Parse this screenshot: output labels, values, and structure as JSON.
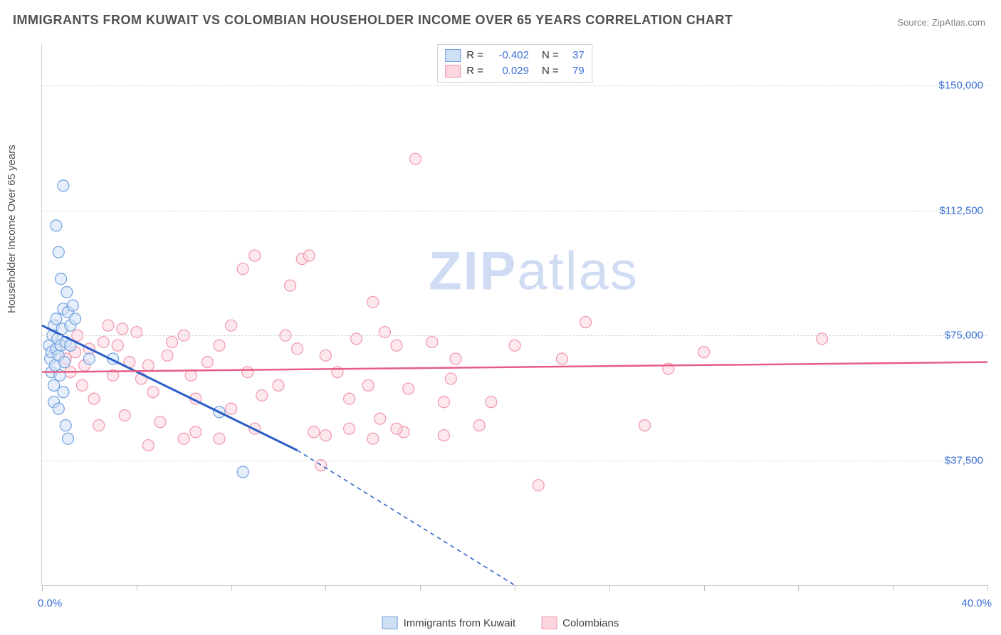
{
  "title": "IMMIGRANTS FROM KUWAIT VS COLOMBIAN HOUSEHOLDER INCOME OVER 65 YEARS CORRELATION CHART",
  "source": "Source: ZipAtlas.com",
  "ylabel": "Householder Income Over 65 years",
  "watermark_bold": "ZIP",
  "watermark_rest": "atlas",
  "chart": {
    "type": "scatter",
    "xlim": [
      0,
      40
    ],
    "ylim": [
      0,
      162500
    ],
    "xtick_positions": [
      0,
      4,
      8,
      12,
      16,
      20,
      24,
      28,
      32,
      36,
      40
    ],
    "xtick_labels": {
      "0": "0.0%",
      "40": "40.0%"
    },
    "ytick_positions": [
      37500,
      75000,
      112500,
      150000
    ],
    "ytick_labels": [
      "$37,500",
      "$75,000",
      "$112,500",
      "$150,000"
    ],
    "grid_color": "#d8d8d8",
    "axis_color": "#d0d0d0",
    "background": "#ffffff",
    "marker_radius": 8,
    "marker_stroke_width": 1.2,
    "series": [
      {
        "name": "Immigrants from Kuwait",
        "fill": "#cfe0f5",
        "stroke": "#6fa0e0",
        "fill_opacity": 0.55,
        "R": "-0.402",
        "N": "37",
        "trend": {
          "x1": 0,
          "y1": 78000,
          "x2": 10.8,
          "y2": 40500,
          "dash_x2": 20,
          "dash_y2": 0,
          "color": "#2a5fc7",
          "width": 3
        },
        "points": [
          [
            0.3,
            72000
          ],
          [
            0.35,
            68000
          ],
          [
            0.4,
            64000
          ],
          [
            0.4,
            70000
          ],
          [
            0.45,
            75000
          ],
          [
            0.5,
            60000
          ],
          [
            0.5,
            78000
          ],
          [
            0.55,
            66000
          ],
          [
            0.6,
            71000
          ],
          [
            0.6,
            80000
          ],
          [
            0.65,
            74000
          ],
          [
            0.7,
            69000
          ],
          [
            0.75,
            63000
          ],
          [
            0.8,
            72000
          ],
          [
            0.85,
            77000
          ],
          [
            0.9,
            83000
          ],
          [
            0.95,
            67000
          ],
          [
            1.0,
            73000
          ],
          [
            1.05,
            88000
          ],
          [
            1.1,
            82000
          ],
          [
            1.2,
            78000
          ],
          [
            1.3,
            84000
          ],
          [
            1.4,
            80000
          ],
          [
            0.6,
            108000
          ],
          [
            0.7,
            100000
          ],
          [
            0.8,
            92000
          ],
          [
            0.9,
            120000
          ],
          [
            1.0,
            48000
          ],
          [
            1.1,
            44000
          ],
          [
            1.2,
            72000
          ],
          [
            0.5,
            55000
          ],
          [
            0.7,
            53000
          ],
          [
            0.9,
            58000
          ],
          [
            2.0,
            68000
          ],
          [
            3.0,
            68000
          ],
          [
            7.5,
            52000
          ],
          [
            8.5,
            34000
          ]
        ]
      },
      {
        "name": "Colombians",
        "fill": "#fbd6df",
        "stroke": "#f196ad",
        "fill_opacity": 0.55,
        "R": "0.029",
        "N": "79",
        "trend": {
          "x1": 0,
          "y1": 64000,
          "x2": 40,
          "y2": 67000,
          "color": "#e75d86",
          "width": 2.5
        },
        "points": [
          [
            0.8,
            72000
          ],
          [
            1.0,
            68000
          ],
          [
            1.2,
            64000
          ],
          [
            1.4,
            70000
          ],
          [
            1.5,
            75000
          ],
          [
            1.7,
            60000
          ],
          [
            1.8,
            66000
          ],
          [
            2.0,
            71000
          ],
          [
            2.2,
            56000
          ],
          [
            2.4,
            48000
          ],
          [
            2.6,
            73000
          ],
          [
            2.8,
            78000
          ],
          [
            3.0,
            63000
          ],
          [
            3.2,
            72000
          ],
          [
            3.4,
            77000
          ],
          [
            3.5,
            51000
          ],
          [
            3.7,
            67000
          ],
          [
            4.0,
            76000
          ],
          [
            4.2,
            62000
          ],
          [
            4.5,
            66000
          ],
          [
            4.7,
            58000
          ],
          [
            5.0,
            49000
          ],
          [
            5.3,
            69000
          ],
          [
            5.5,
            73000
          ],
          [
            6.0,
            75000
          ],
          [
            6.3,
            63000
          ],
          [
            6.5,
            56000
          ],
          [
            7.0,
            67000
          ],
          [
            7.5,
            72000
          ],
          [
            8.0,
            53000
          ],
          [
            8.0,
            78000
          ],
          [
            8.5,
            95000
          ],
          [
            8.7,
            64000
          ],
          [
            9.0,
            99000
          ],
          [
            9.3,
            57000
          ],
          [
            10.0,
            60000
          ],
          [
            10.3,
            75000
          ],
          [
            10.5,
            90000
          ],
          [
            10.8,
            71000
          ],
          [
            11.0,
            98000
          ],
          [
            11.3,
            99000
          ],
          [
            11.5,
            46000
          ],
          [
            11.8,
            36000
          ],
          [
            12.0,
            69000
          ],
          [
            12.5,
            64000
          ],
          [
            13.0,
            56000
          ],
          [
            13.3,
            74000
          ],
          [
            13.8,
            60000
          ],
          [
            14.0,
            85000
          ],
          [
            14.3,
            50000
          ],
          [
            14.5,
            76000
          ],
          [
            15.0,
            72000
          ],
          [
            15.3,
            46000
          ],
          [
            15.5,
            59000
          ],
          [
            15.8,
            128000
          ],
          [
            16.5,
            73000
          ],
          [
            17.0,
            55000
          ],
          [
            17.3,
            62000
          ],
          [
            17.5,
            68000
          ],
          [
            18.5,
            48000
          ],
          [
            19.0,
            55000
          ],
          [
            20.0,
            72000
          ],
          [
            21.0,
            30000
          ],
          [
            22.0,
            68000
          ],
          [
            23.0,
            79000
          ],
          [
            25.5,
            48000
          ],
          [
            26.5,
            65000
          ],
          [
            28.0,
            70000
          ],
          [
            33.0,
            74000
          ],
          [
            4.5,
            42000
          ],
          [
            6.0,
            44000
          ],
          [
            6.5,
            46000
          ],
          [
            7.5,
            44000
          ],
          [
            9.0,
            47000
          ],
          [
            12.0,
            45000
          ],
          [
            13.0,
            47000
          ],
          [
            14.0,
            44000
          ],
          [
            15.0,
            47000
          ],
          [
            17.0,
            45000
          ]
        ]
      }
    ],
    "legend": [
      "Immigrants from Kuwait",
      "Colombians"
    ]
  }
}
